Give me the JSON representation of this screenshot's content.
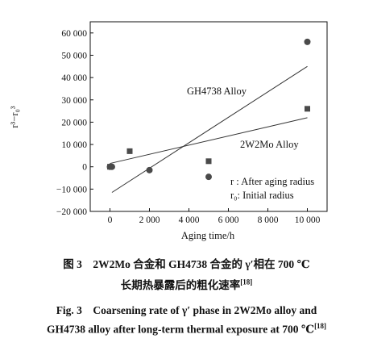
{
  "chart_data": {
    "type": "scatter",
    "xlabel": "Aging time/h",
    "ylabel": "r³−r₀³",
    "xlim": [
      -1000,
      11000
    ],
    "ylim": [
      -20000,
      65000
    ],
    "x_ticks": [
      0,
      2000,
      4000,
      6000,
      8000,
      10000
    ],
    "x_tick_labels": [
      "0",
      "2 000",
      "4 000",
      "6 000",
      "8 000",
      "10 000"
    ],
    "y_ticks": [
      -20000,
      -10000,
      0,
      10000,
      20000,
      30000,
      40000,
      50000,
      60000
    ],
    "y_tick_labels": [
      "−20 000",
      "−10 000",
      "0",
      "10 000",
      "20 000",
      "30 000",
      "40 000",
      "50 000",
      "60 000"
    ],
    "grid": false,
    "series": [
      {
        "name": "GH4738 Alloy",
        "marker": "circle",
        "points": [
          [
            0,
            0
          ],
          [
            100,
            0
          ],
          [
            2000,
            -1500
          ],
          [
            5000,
            -4500
          ],
          [
            10000,
            56000
          ]
        ],
        "fit": [
          [
            100,
            -11500
          ],
          [
            10000,
            45000
          ]
        ]
      },
      {
        "name": "2W2Mo Alloy",
        "marker": "square",
        "points": [
          [
            0,
            0
          ],
          [
            1000,
            7000
          ],
          [
            5000,
            2500
          ],
          [
            10000,
            26000
          ]
        ],
        "fit": [
          [
            0,
            1500
          ],
          [
            10000,
            22000
          ]
        ]
      }
    ],
    "annotations": {
      "line1": "r : After aging radius",
      "line2": "r₀: Initial radius"
    }
  },
  "caption": {
    "cn_line1": "图 3　2W2Mo 合金和 GH4738 合金的 γ′相在 700 ℃",
    "cn_line2": "长期热暴露后的粗化速率",
    "cn_ref": "[18]",
    "en_line1": "Fig. 3　Coarsening rate of γ′ phase in 2W2Mo alloy and",
    "en_line2": "GH4738 alloy after long-term thermal exposure at 700 ℃",
    "en_ref": "[18]"
  }
}
